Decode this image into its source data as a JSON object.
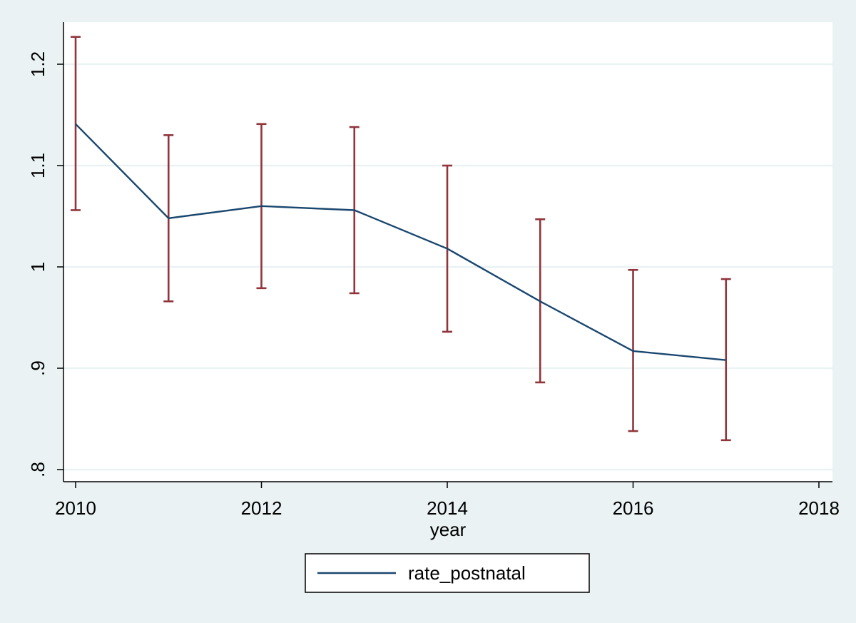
{
  "chart_data": {
    "type": "line",
    "x": [
      2010,
      2011,
      2012,
      2013,
      2014,
      2015,
      2016,
      2017
    ],
    "series": [
      {
        "name": "rate_postnatal",
        "values": [
          1.141,
          1.048,
          1.06,
          1.056,
          1.018,
          0.966,
          0.917,
          0.908
        ],
        "ci_upper": [
          1.227,
          1.13,
          1.141,
          1.138,
          1.1,
          1.047,
          0.997,
          0.988
        ],
        "ci_lower": [
          1.056,
          0.966,
          0.979,
          0.974,
          0.936,
          0.886,
          0.838,
          0.829
        ],
        "color": "#1a476f",
        "ci_color": "#90353b"
      }
    ],
    "xlabel": "year",
    "ylabel": "",
    "xlim": [
      2010,
      2018
    ],
    "ylim": [
      0.8,
      1.2
    ],
    "xticks": [
      2010,
      2012,
      2014,
      2016,
      2018
    ],
    "xtick_labels": [
      "2010",
      "2012",
      "2014",
      "2016",
      "2018"
    ],
    "yticks": [
      0.8,
      0.9,
      1.0,
      1.1,
      1.2
    ],
    "ytick_labels": [
      ".8",
      ".9",
      "1",
      "1.1",
      "1.2"
    ],
    "grid": true,
    "legend_position": "bottom-center",
    "colors": {
      "background": "#eaf2f3",
      "plot_background": "#ffffff",
      "grid": "#eaf2f3"
    }
  }
}
